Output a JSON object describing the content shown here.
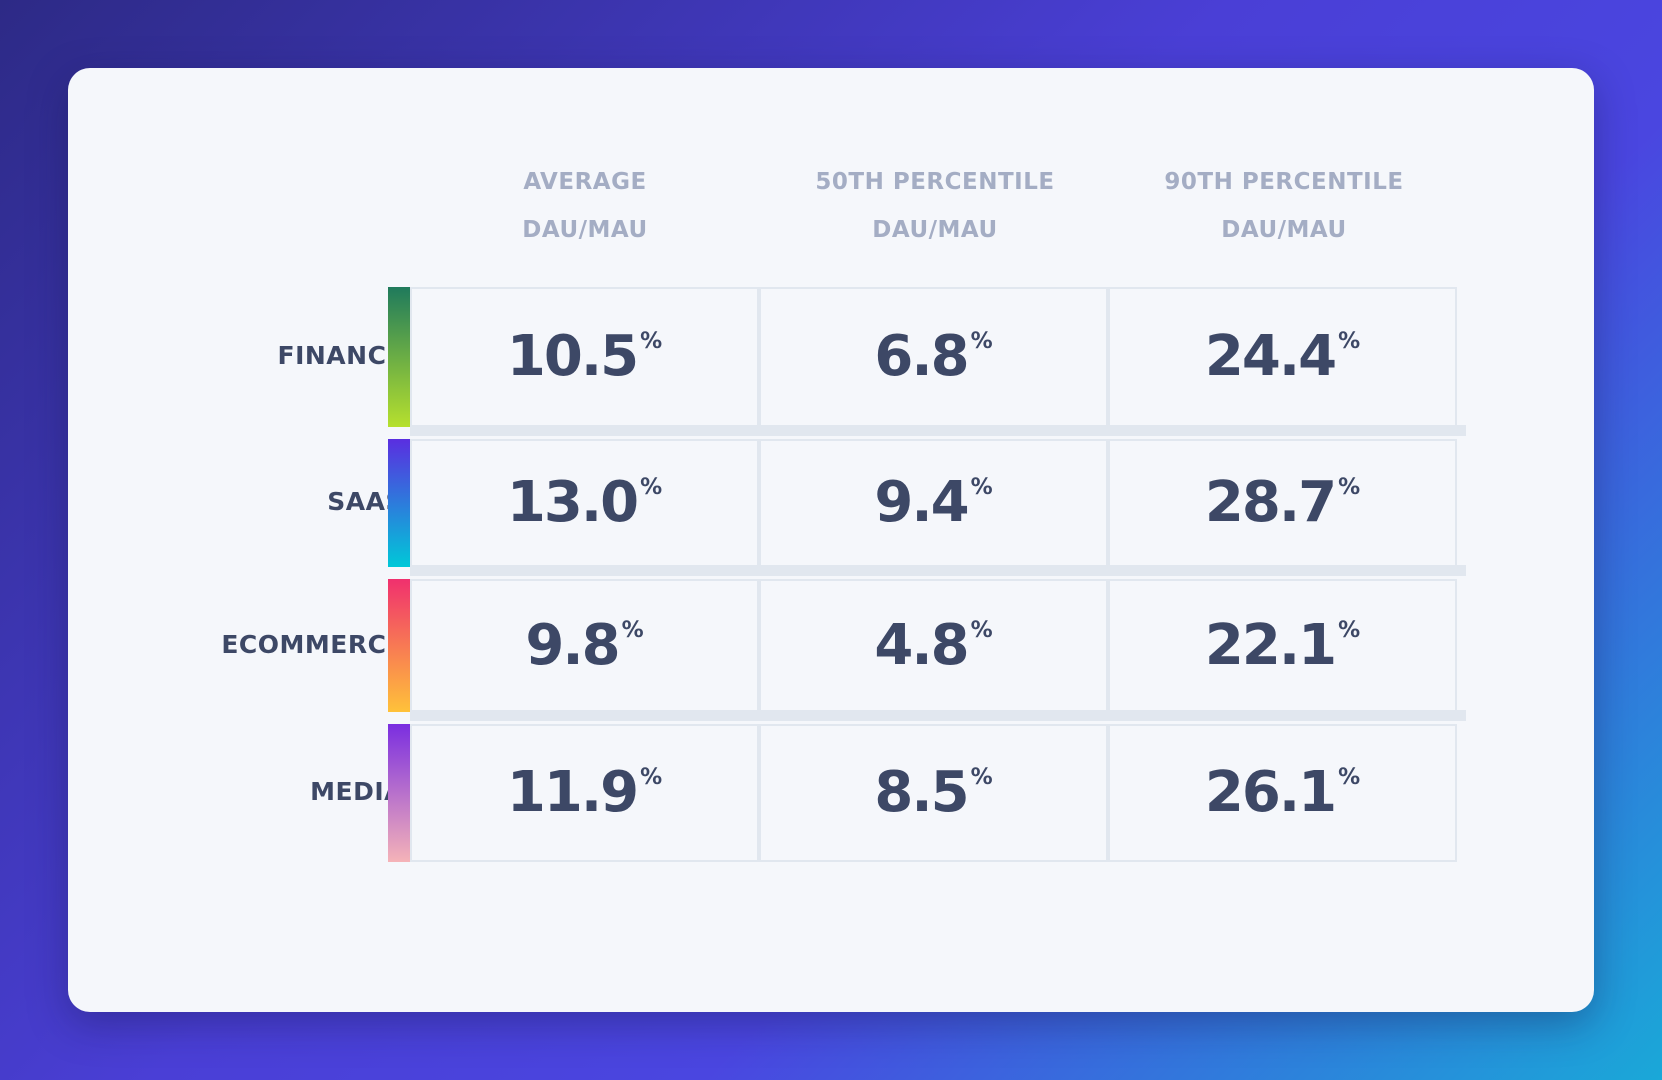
{
  "chart_data": {
    "type": "table",
    "columns": [
      {
        "line1": "AVERAGE",
        "line2": "DAU/MAU"
      },
      {
        "line1": "50TH PERCENTILE",
        "line2": "DAU/MAU"
      },
      {
        "line1": "90TH PERCENTILE",
        "line2": "DAU/MAU"
      }
    ],
    "unit": "%",
    "rows": [
      {
        "label": "FINANCE",
        "values": [
          "10.5",
          "6.8",
          "24.4"
        ],
        "colors": [
          "#1f7a5c",
          "#b6e02e"
        ]
      },
      {
        "label": "SAAS",
        "values": [
          "13.0",
          "9.4",
          "28.7"
        ],
        "colors": [
          "#5a2ee0",
          "#00c8d8"
        ]
      },
      {
        "label": "ECOMMERCE",
        "values": [
          "9.8",
          "4.8",
          "22.1"
        ],
        "colors": [
          "#f0306e",
          "#ffc23a"
        ]
      },
      {
        "label": "MEDIA",
        "values": [
          "11.9",
          "8.5",
          "26.1"
        ],
        "colors": [
          "#7a2ee0",
          "#f5b3b8"
        ]
      }
    ]
  }
}
